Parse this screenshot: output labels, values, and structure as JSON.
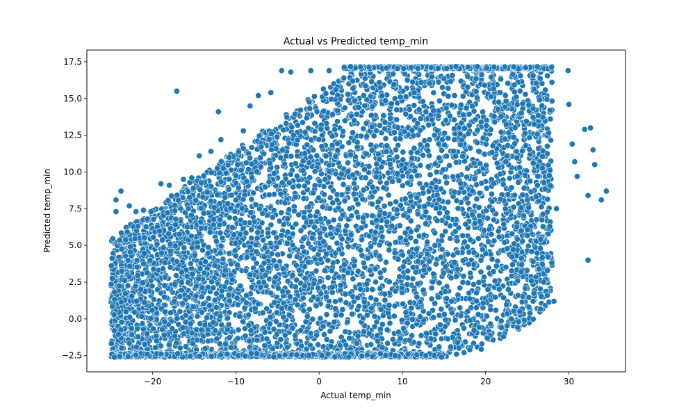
{
  "chart_data": {
    "type": "scatter",
    "title": "Actual vs Predicted temp_min",
    "xlabel": "Actual temp_min",
    "ylabel": "Predicted temp_min",
    "xlim": [
      -27.9,
      36.8
    ],
    "ylim": [
      -3.6,
      18.3
    ],
    "xticks": [
      -20,
      -10,
      0,
      10,
      20,
      30
    ],
    "xtick_labels": [
      "−20",
      "−10",
      "0",
      "10",
      "20",
      "30"
    ],
    "yticks": [
      -2.5,
      0.0,
      2.5,
      5.0,
      7.5,
      10.0,
      12.5,
      15.0,
      17.5
    ],
    "ytick_labels": [
      "−2.5",
      "0.0",
      "2.5",
      "5.0",
      "7.5",
      "10.0",
      "12.5",
      "15.0",
      "17.5"
    ],
    "grid": false,
    "legend": "none",
    "marker_color": "#1f77b4",
    "marker_edge": "#ffffff",
    "density_profile": {
      "x": [
        -25,
        -20,
        -15,
        -10,
        -5,
        0,
        5,
        10,
        15,
        20,
        25,
        28
      ],
      "y_low": [
        -2.6,
        -2.6,
        -2.6,
        -2.6,
        -2.6,
        -2.6,
        -2.6,
        -2.6,
        -2.6,
        -2.0,
        -0.5,
        1.3
      ],
      "y_high": [
        5.5,
        7.5,
        9.5,
        11.5,
        13.5,
        15.5,
        17.1,
        17.1,
        17.1,
        17.1,
        17.1,
        17.1
      ]
    },
    "points": [
      [
        -24.6,
        -0.8
      ],
      [
        -24.4,
        8.1
      ],
      [
        -24.4,
        7.3
      ],
      [
        -23.8,
        8.7
      ],
      [
        -22.8,
        7.7
      ],
      [
        -22.0,
        7.3
      ],
      [
        -21.1,
        7.4
      ],
      [
        -20.2,
        7.3
      ],
      [
        -19.0,
        9.2
      ],
      [
        -18.0,
        9.1
      ],
      [
        -17.1,
        15.5
      ],
      [
        -16.3,
        9.5
      ],
      [
        -15.3,
        9.6
      ],
      [
        -14.4,
        11.1
      ],
      [
        -13.0,
        11.4
      ],
      [
        -12.1,
        14.1
      ],
      [
        -11.8,
        12.2
      ],
      [
        -10.8,
        11.0
      ],
      [
        -9.8,
        10.5
      ],
      [
        -9.1,
        12.8
      ],
      [
        -8.3,
        14.5
      ],
      [
        -7.3,
        15.2
      ],
      [
        -5.8,
        15.4
      ],
      [
        -4.5,
        16.9
      ],
      [
        -3.4,
        16.8
      ],
      [
        -1.0,
        16.9
      ],
      [
        1.2,
        16.9
      ],
      [
        2.0,
        15.6
      ],
      [
        25.2,
        0.8
      ],
      [
        25.7,
        1.2
      ],
      [
        27.4,
        1.6
      ],
      [
        28.2,
        1.2
      ],
      [
        28.5,
        7.5
      ],
      [
        29.9,
        16.9
      ],
      [
        30.0,
        14.6
      ],
      [
        30.4,
        11.9
      ],
      [
        31.0,
        9.7
      ],
      [
        32.3,
        4.0
      ],
      [
        32.3,
        8.4
      ],
      [
        32.6,
        13.0
      ],
      [
        32.9,
        11.5
      ],
      [
        33.1,
        10.5
      ],
      [
        33.9,
        8.1
      ],
      [
        34.5,
        8.7
      ],
      [
        31.9,
        12.9
      ],
      [
        30.7,
        10.7
      ],
      [
        26.4,
        3.4
      ],
      [
        25.5,
        2.6
      ],
      [
        24.1,
        0.5
      ],
      [
        23.1,
        0.0
      ],
      [
        21.9,
        -0.6
      ],
      [
        20.2,
        -1.3
      ],
      [
        18.1,
        -2.1
      ],
      [
        17.4,
        -2.3
      ],
      [
        16.5,
        -2.4
      ],
      [
        15.8,
        -1.9
      ],
      [
        14.7,
        -2.6
      ],
      [
        12.8,
        -2.5
      ],
      [
        -24.9,
        -2.4
      ],
      [
        -24.6,
        -2.6
      ]
    ]
  }
}
